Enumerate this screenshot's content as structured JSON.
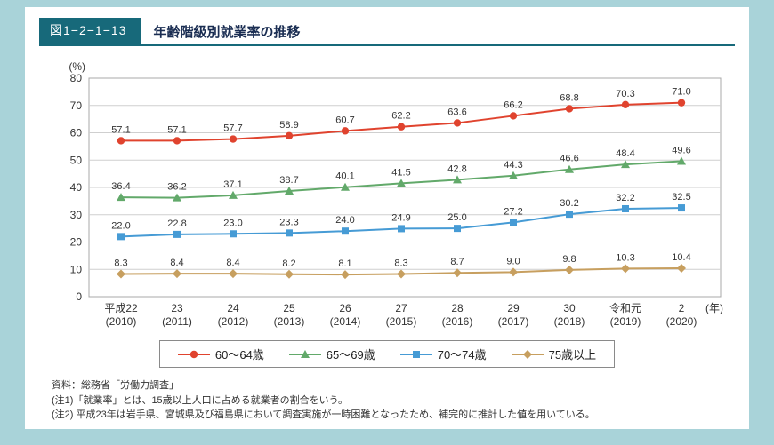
{
  "header": {
    "figure_label": "図1−2−1−13",
    "title": "年齢階級別就業率の推移"
  },
  "chart_data": {
    "type": "line",
    "title": "年齢階級別就業率の推移",
    "unit_label": "(%)",
    "x_unit_label": "(年)",
    "grid": true,
    "legend_position": "bottom",
    "ylim": [
      0,
      80
    ],
    "ytick_step": 10,
    "categories_line1": [
      "平成22",
      "23",
      "24",
      "25",
      "26",
      "27",
      "28",
      "29",
      "30",
      "令和元",
      "2"
    ],
    "categories_line2": [
      "(2010)",
      "(2011)",
      "(2012)",
      "(2013)",
      "(2014)",
      "(2015)",
      "(2016)",
      "(2017)",
      "(2018)",
      "(2019)",
      "(2020)"
    ],
    "series": [
      {
        "name": "60〜64歳",
        "marker": "circle",
        "color": "#e0432e",
        "values": [
          57.1,
          57.1,
          57.7,
          58.9,
          60.7,
          62.2,
          63.6,
          66.2,
          68.8,
          70.3,
          71.0
        ]
      },
      {
        "name": "65〜69歳",
        "marker": "triangle",
        "color": "#62a96a",
        "values": [
          36.4,
          36.2,
          37.1,
          38.7,
          40.1,
          41.5,
          42.8,
          44.3,
          46.6,
          48.4,
          49.6
        ]
      },
      {
        "name": "70〜74歳",
        "marker": "square",
        "color": "#469bd5",
        "values": [
          22.0,
          22.8,
          23.0,
          23.3,
          24.0,
          24.9,
          25.0,
          27.2,
          30.2,
          32.2,
          32.5
        ]
      },
      {
        "name": "75歳以上",
        "marker": "diamond",
        "color": "#c79f5f",
        "values": [
          8.3,
          8.4,
          8.4,
          8.2,
          8.1,
          8.3,
          8.7,
          9.0,
          9.8,
          10.3,
          10.4
        ]
      }
    ]
  },
  "footer": {
    "source": "資料：総務省「労働力調査」",
    "note1": "(注1)「就業率」とは、15歳以上人口に占める就業者の割合をいう。",
    "note2": "(注2) 平成23年は岩手県、宮城県及び福島県において調査実施が一時困難となったため、補完的に推計した値を用いている。"
  }
}
